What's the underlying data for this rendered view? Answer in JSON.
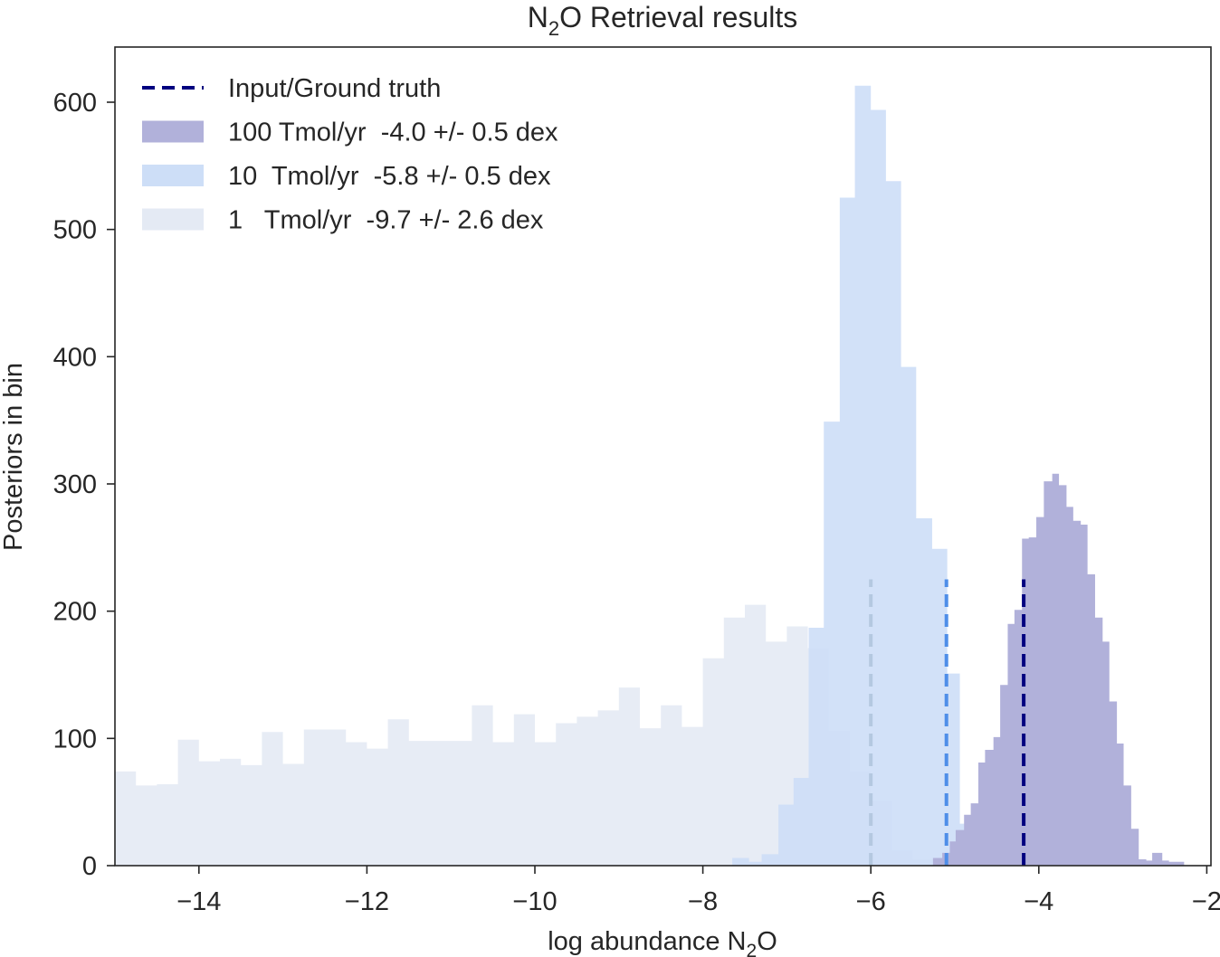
{
  "chart_data": {
    "type": "bar",
    "subtype": "histogram (overlaid, stepfilled)",
    "title": "N2O Retrieval results",
    "title_parts": {
      "pre": "N",
      "sub": "2",
      "post": "O Retrieval results"
    },
    "xlabel": "log abundance N2O",
    "xlabel_parts": {
      "pre": "log abundance N",
      "sub": "2",
      "post": "O"
    },
    "ylabel": "Posteriors in bin",
    "xlim": [
      -15.0,
      -1.95
    ],
    "ylim": [
      0,
      640
    ],
    "xticks": [
      -14,
      -12,
      -10,
      -8,
      -6,
      -4,
      -2
    ],
    "xtick_labels": [
      "−14",
      "−12",
      "−10",
      "−8",
      "−6",
      "−4",
      "−2"
    ],
    "yticks": [
      0,
      100,
      200,
      300,
      400,
      500,
      600
    ],
    "ytick_labels": [
      "0",
      "100",
      "200",
      "300",
      "400",
      "500",
      "600"
    ],
    "grid": false,
    "legend_position": "upper left",
    "legend": [
      {
        "label": "Input/Ground truth",
        "kind": "dashed-line",
        "color": "#00007f"
      },
      {
        "label": "100 Tmol/yr  -4.0 +/- 0.5 dex",
        "kind": "patch",
        "color": "#b1b1da"
      },
      {
        "label": "10  Tmol/yr  -5.8 +/- 0.5 dex",
        "kind": "patch",
        "color": "#cddef7"
      },
      {
        "label": "1   Tmol/yr  -9.7 +/- 2.6 dex",
        "kind": "patch",
        "color": "#e4eaf4"
      }
    ],
    "series": [
      {
        "name": "1 Tmol/yr",
        "retrieved": "-9.7 +/- 2.6 dex",
        "color": "#e4eaf4",
        "opacity": 0.9,
        "bin_edges": [
          -15.0,
          -14.75,
          -14.5,
          -14.25,
          -14.0,
          -13.75,
          -13.5,
          -13.25,
          -13.0,
          -12.75,
          -12.5,
          -12.25,
          -12.0,
          -11.75,
          -11.5,
          -11.25,
          -11.0,
          -10.75,
          -10.5,
          -10.25,
          -10.0,
          -9.75,
          -9.5,
          -9.25,
          -9.0,
          -8.75,
          -8.5,
          -8.25,
          -8.0,
          -7.75,
          -7.5,
          -7.25,
          -7.0,
          -6.75,
          -6.5,
          -6.25,
          -6.0,
          -5.75,
          -5.5,
          -5.25,
          -5.0
        ],
        "values": [
          74,
          63,
          64,
          99,
          82,
          84,
          79,
          105,
          80,
          107,
          107,
          97,
          92,
          115,
          98,
          98,
          98,
          126,
          97,
          119,
          97,
          112,
          117,
          122,
          140,
          108,
          126,
          109,
          163,
          195,
          205,
          176,
          188,
          171,
          106,
          74,
          51,
          12,
          5,
          2
        ]
      },
      {
        "name": "10 Tmol/yr",
        "retrieved": "-5.8 +/- 0.5 dex",
        "color": "#cddef7",
        "opacity": 0.9,
        "bin_edges": [
          -7.65,
          -7.45,
          -7.3,
          -7.1,
          -6.92,
          -6.74,
          -6.56,
          -6.37,
          -6.19,
          -6.0,
          -5.82,
          -5.64,
          -5.46,
          -5.27,
          -5.09,
          -4.94,
          -4.75,
          -4.56
        ],
        "values": [
          6,
          3,
          9,
          48,
          69,
          187,
          349,
          525,
          613,
          594,
          538,
          392,
          273,
          249,
          151,
          33,
          12
        ]
      },
      {
        "name": "100 Tmol/yr",
        "retrieved": "-4.0 +/- 0.5 dex",
        "color": "#b1b1da",
        "opacity": 1.0,
        "bin_edges": [
          -5.26,
          -5.15,
          -5.06,
          -4.99,
          -4.89,
          -4.81,
          -4.72,
          -4.64,
          -4.54,
          -4.46,
          -4.37,
          -4.29,
          -4.2,
          -4.12,
          -4.03,
          -3.94,
          -3.84,
          -3.76,
          -3.67,
          -3.59,
          -3.5,
          -3.42,
          -3.33,
          -3.24,
          -3.16,
          -3.07,
          -2.99,
          -2.9,
          -2.81,
          -2.72,
          -2.65,
          -2.53,
          -2.45,
          -2.27
        ],
        "values": [
          6,
          10,
          19,
          28,
          40,
          49,
          81,
          91,
          101,
          142,
          190,
          201,
          257,
          258,
          274,
          302,
          308,
          299,
          282,
          271,
          268,
          229,
          195,
          176,
          129,
          96,
          63,
          29,
          5,
          4,
          10,
          4,
          3
        ]
      }
    ],
    "ground_truth_lines": [
      {
        "series": "1 Tmol/yr",
        "x": -6.0,
        "ymax": 225,
        "color": "#b4c8e0"
      },
      {
        "series": "10 Tmol/yr",
        "x": -5.1,
        "ymax": 225,
        "color": "#4f8ee8"
      },
      {
        "series": "100 Tmol/yr",
        "x": -4.18,
        "ymax": 225,
        "color": "#00007f"
      }
    ]
  }
}
